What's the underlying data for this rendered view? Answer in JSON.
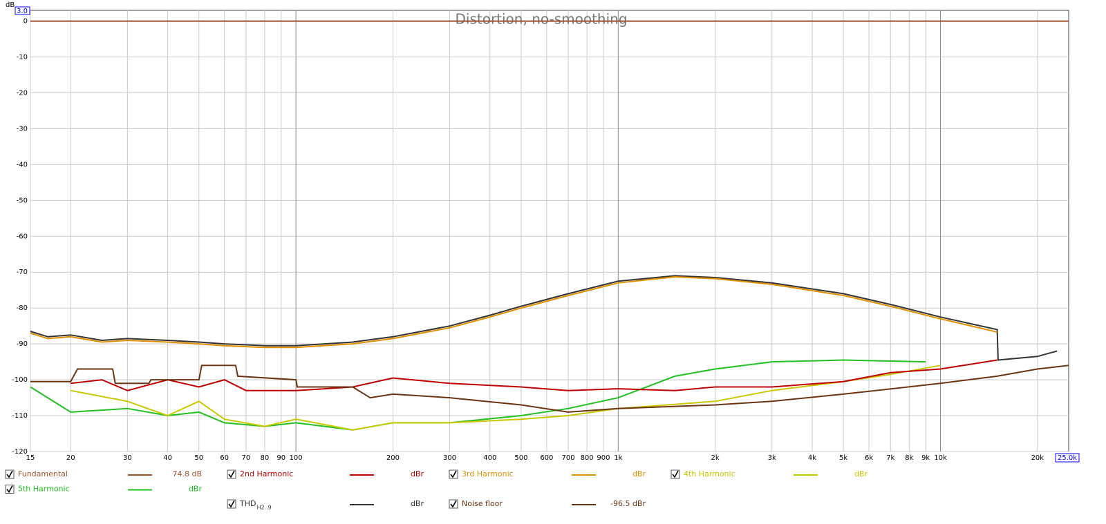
{
  "chart_data": {
    "type": "line",
    "title": "Distortion, no-smoothing",
    "y_unit": "dB",
    "x_log": true,
    "grid": true,
    "xlim": [
      15,
      25000
    ],
    "x_end_label": "25.0k",
    "ylim": [
      -120,
      3
    ],
    "y_top_label": "3.0",
    "yticks": [
      0,
      -10,
      -20,
      -30,
      -40,
      -50,
      -60,
      -70,
      -80,
      -90,
      -100,
      -110,
      -120
    ],
    "xticks": [
      15,
      20,
      30,
      40,
      50,
      60,
      70,
      80,
      90,
      100,
      200,
      300,
      400,
      500,
      600,
      700,
      800,
      900,
      {
        "value": 1000,
        "label": "1k"
      },
      {
        "value": 2000,
        "label": "2k"
      },
      {
        "value": 3000,
        "label": "3k"
      },
      {
        "value": 4000,
        "label": "4k"
      },
      {
        "value": 5000,
        "label": "5k"
      },
      {
        "value": 6000,
        "label": "6k"
      },
      {
        "value": 7000,
        "label": "7k"
      },
      {
        "value": 8000,
        "label": "8k"
      },
      {
        "value": 9000,
        "label": "9k"
      },
      {
        "value": 10000,
        "label": "10k"
      },
      {
        "value": 20000,
        "label": "20k"
      }
    ],
    "series": [
      {
        "name": "Fundamental",
        "color": "#a0522d",
        "legend_value": "74.8 dB",
        "x": [
          15,
          25000
        ],
        "values": [
          0,
          0
        ]
      },
      {
        "name": "2nd Harmonic",
        "color": "#c00000",
        "legend_value": "dBr",
        "x": [
          20,
          25,
          30,
          40,
          50,
          60,
          70,
          100,
          150,
          200,
          300,
          500,
          700,
          1000,
          1500,
          2000,
          3000,
          5000,
          7000,
          10000,
          15000
        ],
        "values": [
          -101,
          -100,
          -103,
          -100,
          -102,
          -100,
          -103,
          -103,
          -102,
          -99.5,
          -101,
          -102,
          -103,
          -102.5,
          -103,
          -102,
          -102,
          -100.5,
          -98,
          -97,
          -94.5
        ]
      },
      {
        "name": "3rd Harmonic",
        "color": "#e09000",
        "legend_value": "dBr",
        "x": [
          15,
          17,
          20,
          25,
          30,
          40,
          50,
          60,
          80,
          100,
          150,
          200,
          300,
          400,
          500,
          700,
          1000,
          1500,
          2000,
          3000,
          5000,
          7000,
          10000,
          15000
        ],
        "values": [
          -87,
          -88.5,
          -88,
          -89.5,
          -89,
          -89.5,
          -90,
          -90.5,
          -91,
          -91,
          -90,
          -88.5,
          -85.5,
          -82.5,
          -80,
          -76.5,
          -73,
          -71.3,
          -71.8,
          -73.4,
          -76.5,
          -79.5,
          -83,
          -86.7
        ]
      },
      {
        "name": "4th Harmonic",
        "color": "#c8c800",
        "legend_value": "dBr",
        "x": [
          20,
          30,
          40,
          50,
          60,
          80,
          100,
          150,
          200,
          300,
          500,
          700,
          1000,
          2000,
          3000,
          5000,
          7000,
          10000
        ],
        "values": [
          -103,
          -106,
          -110,
          -106,
          -111,
          -113,
          -111,
          -114,
          -112,
          -112,
          -111,
          -110,
          -108,
          -106,
          -103,
          -100.5,
          -98.5,
          -96
        ]
      },
      {
        "name": "5th Harmonic",
        "color": "#20c020",
        "legend_value": "dBr",
        "x": [
          15,
          20,
          30,
          40,
          50,
          60,
          80,
          100,
          150,
          200,
          300,
          500,
          700,
          1000,
          1500,
          2000,
          3000,
          5000,
          9000
        ],
        "values": [
          -102,
          -109,
          -108,
          -110,
          -109,
          -112,
          -113,
          -112,
          -114,
          -112,
          -112,
          -110,
          -108,
          -105,
          -99,
          -97,
          -95,
          -94.5,
          -95
        ]
      },
      {
        "name": "THD",
        "name_sub": "H2..9",
        "color": "#333333",
        "legend_value": "dBr",
        "x": [
          15,
          17,
          20,
          25,
          30,
          40,
          50,
          60,
          80,
          100,
          150,
          200,
          300,
          400,
          500,
          700,
          1000,
          1500,
          2000,
          3000,
          5000,
          7000,
          10000,
          15000,
          15100,
          20000,
          23000
        ],
        "values": [
          -86.5,
          -88,
          -87.5,
          -89,
          -88.5,
          -89,
          -89.5,
          -90,
          -90.5,
          -90.5,
          -89.5,
          -88,
          -85,
          -82,
          -79.5,
          -76,
          -72.5,
          -71,
          -71.5,
          -73,
          -76,
          -79,
          -82.5,
          -86,
          -94.5,
          -93.5,
          -92
        ]
      },
      {
        "name": "Noise floor",
        "color": "#6b3410",
        "legend_value": "-96.5 dBr",
        "x": [
          15,
          20,
          21,
          27,
          27.5,
          35,
          35.5,
          50,
          51,
          65,
          66,
          100,
          101,
          150,
          170,
          200,
          300,
          500,
          700,
          1000,
          2000,
          3000,
          5000,
          10000,
          15000,
          20000,
          25000
        ],
        "values": [
          -100.5,
          -100.5,
          -97,
          -97,
          -101,
          -101,
          -100,
          -100,
          -96,
          -96,
          -99,
          -100,
          -102,
          -102,
          -105,
          -104,
          -105,
          -107,
          -109,
          -108,
          -107,
          -106,
          -104,
          -101,
          -99,
          -97,
          -96
        ]
      }
    ]
  }
}
